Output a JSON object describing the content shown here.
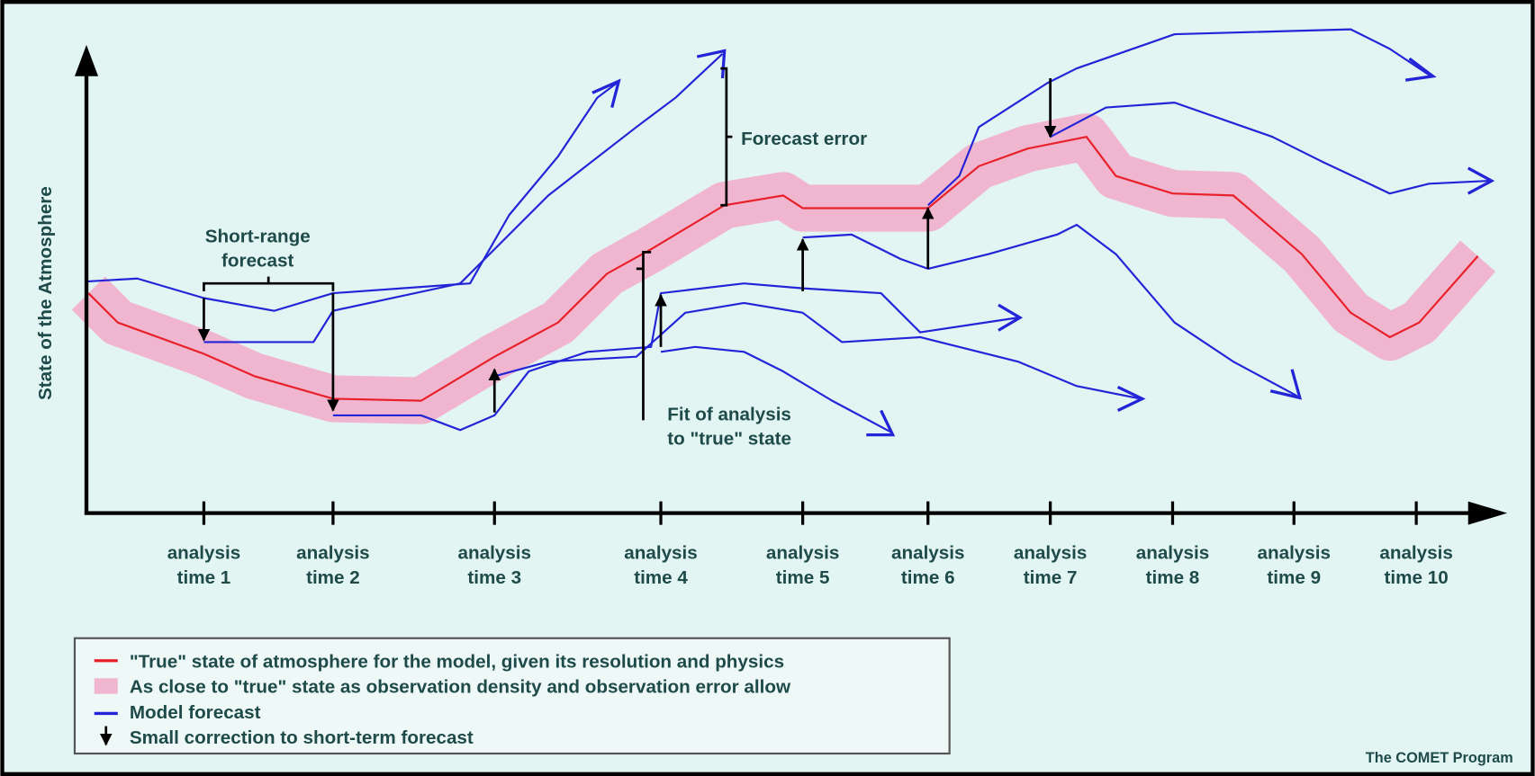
{
  "y_axis_label": "State of the Atmosphere",
  "analysis_times": [
    [
      "analysis",
      "time 1"
    ],
    [
      "analysis",
      "time 2"
    ],
    [
      "analysis",
      "time 3"
    ],
    [
      "analysis",
      "time 4"
    ],
    [
      "analysis",
      "time 5"
    ],
    [
      "analysis",
      "time 6"
    ],
    [
      "analysis",
      "time 7"
    ],
    [
      "analysis",
      "time 8"
    ],
    [
      "analysis",
      "time 9"
    ],
    [
      "analysis",
      "time 10"
    ]
  ],
  "annotations": {
    "short_range": [
      "Short-range",
      "forecast"
    ],
    "forecast_error": "Forecast error",
    "fit": [
      "Fit of analysis",
      "to \"true\" state"
    ]
  },
  "legend": [
    "\"True\" state of atmosphere for the model, given its resolution and physics",
    "As close to \"true\" state as observation density and observation error allow",
    "Model forecast",
    "Small correction to short-term forecast"
  ],
  "credit": "The COMET Program"
}
